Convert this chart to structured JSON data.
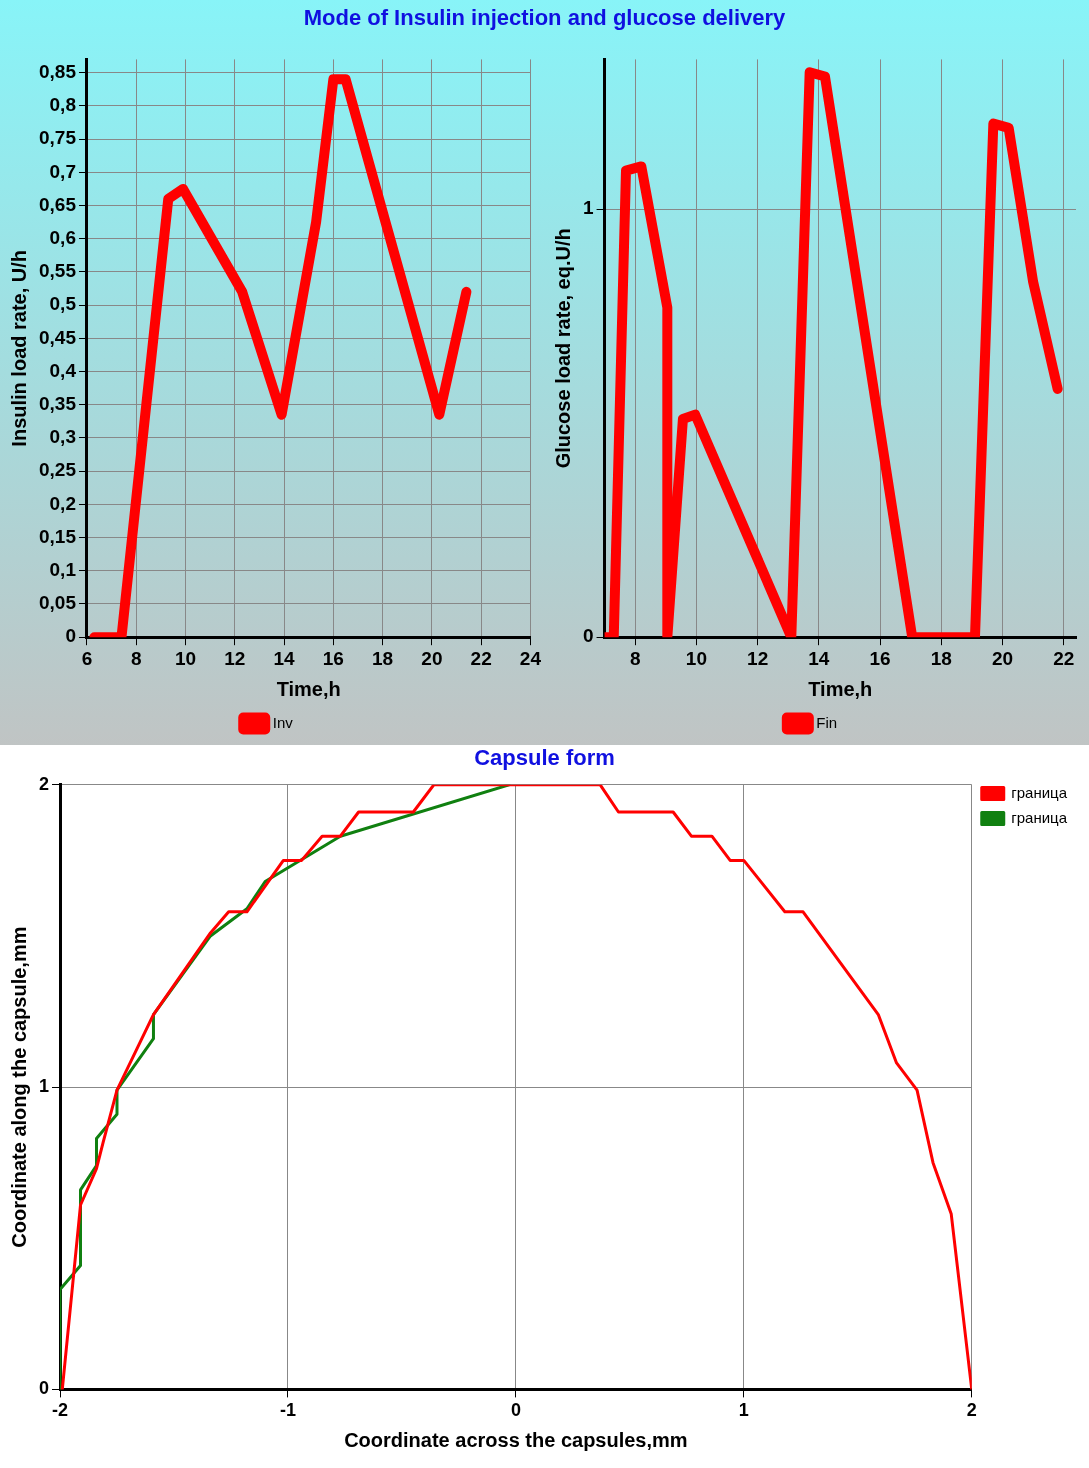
{
  "chart_data": [
    {
      "type": "line",
      "title": "Mode of Insulin injection and glucose delivery",
      "xlabel": "Time,h",
      "ylabel": "Insulin load rate, U/h",
      "xlim": [
        6,
        24
      ],
      "xticks": [
        6,
        8,
        10,
        12,
        14,
        16,
        18,
        20,
        22,
        24
      ],
      "ylim": [
        0,
        0.87
      ],
      "yticks": [
        0,
        {
          "value": 0.05,
          "label": "0,05"
        },
        {
          "value": 0.1,
          "label": "0,1"
        },
        {
          "value": 0.15,
          "label": "0,15"
        },
        {
          "value": 0.2,
          "label": "0,2"
        },
        {
          "value": 0.25,
          "label": "0,25"
        },
        {
          "value": 0.3,
          "label": "0,3"
        },
        {
          "value": 0.35,
          "label": "0,35"
        },
        {
          "value": 0.4,
          "label": "0,4"
        },
        {
          "value": 0.45,
          "label": "0,45"
        },
        {
          "value": 0.5,
          "label": "0,5"
        },
        {
          "value": 0.55,
          "label": "0,55"
        },
        {
          "value": 0.6,
          "label": "0,6"
        },
        {
          "value": 0.65,
          "label": "0,65"
        },
        {
          "value": 0.7,
          "label": "0,7"
        },
        {
          "value": 0.75,
          "label": "0,75"
        },
        {
          "value": 0.8,
          "label": "0,8"
        },
        {
          "value": 0.85,
          "label": "0,85"
        }
      ],
      "grid": true,
      "legend": "bottom",
      "x": [
        6.3,
        7.4,
        9.3,
        9.9,
        12.3,
        13.9,
        15.3,
        16,
        16.5,
        20.3,
        21.4
      ],
      "series": [
        {
          "name": "Inv",
          "color": "#ff0000",
          "values": [
            0,
            0,
            0.66,
            0.675,
            0.52,
            0.335,
            0.625,
            0.84,
            0.84,
            0.335,
            0.52
          ]
        }
      ]
    },
    {
      "type": "line",
      "xlabel": "Time,h",
      "ylabel": "Glucose load rate, eq.U/h",
      "xlim": [
        7,
        22.4
      ],
      "xticks": [
        8,
        10,
        12,
        14,
        16,
        18,
        20,
        22
      ],
      "ylim": [
        0,
        1.35
      ],
      "yticks": [
        0,
        1
      ],
      "grid": true,
      "legend": "bottom",
      "x": [
        7,
        7.3,
        7.7,
        8.2,
        9.05,
        9.05,
        9.56,
        9.96,
        13.1,
        13.7,
        14.2,
        17.05,
        19.1,
        19.7,
        20.2,
        21,
        21.8
      ],
      "series": [
        {
          "name": "Fin",
          "color": "#ff0000",
          "values": [
            0,
            0,
            1.09,
            1.1,
            0.77,
            0,
            0.51,
            0.52,
            0,
            1.32,
            1.31,
            0,
            0,
            1.2,
            1.19,
            0.83,
            0.58
          ]
        }
      ]
    },
    {
      "type": "line",
      "title": "Capsule form",
      "xlabel": "Coordinate across the capsules,mm",
      "ylabel": "Coordinate along the capsule,mm",
      "xlim": [
        -2,
        2
      ],
      "xticks": [
        -2,
        -1,
        0,
        1,
        2
      ],
      "ylim": [
        0,
        2
      ],
      "yticks": [
        0,
        1,
        2
      ],
      "grid": true,
      "legend": "right",
      "series": [
        {
          "name": "граница",
          "color": "#ff0000",
          "x": [
            -1.99,
            -1.91,
            -1.84,
            -1.81,
            -1.75,
            -1.59,
            -1.34,
            -1.26,
            -1.18,
            -1.02,
            -0.94,
            -0.85,
            -0.77,
            -0.69,
            -0.45,
            -0.36,
            0.37,
            0.45,
            0.69,
            0.77,
            0.86,
            0.94,
            1.0,
            1.18,
            1.26,
            1.59,
            1.67,
            1.76,
            1.83,
            1.91,
            2
          ],
          "values": [
            0,
            0.61,
            0.73,
            0.82,
            0.99,
            1.24,
            1.51,
            1.58,
            1.58,
            1.75,
            1.75,
            1.83,
            1.83,
            1.91,
            1.91,
            2,
            2,
            1.91,
            1.91,
            1.83,
            1.83,
            1.75,
            1.75,
            1.58,
            1.58,
            1.24,
            1.08,
            0.99,
            0.75,
            0.58,
            0
          ]
        },
        {
          "name": "граница",
          "color": "#108010",
          "x": [
            -2,
            -2,
            -1.91,
            -1.91,
            -1.84,
            -1.84,
            -1.75,
            -1.75,
            -1.59,
            -1.59,
            -1.34,
            -1.18,
            -1.1,
            -0.77,
            -0.03
          ],
          "values": [
            0,
            0.33,
            0.41,
            0.66,
            0.74,
            0.83,
            0.91,
            0.99,
            1.16,
            1.24,
            1.5,
            1.59,
            1.68,
            1.83,
            2
          ]
        }
      ]
    }
  ]
}
